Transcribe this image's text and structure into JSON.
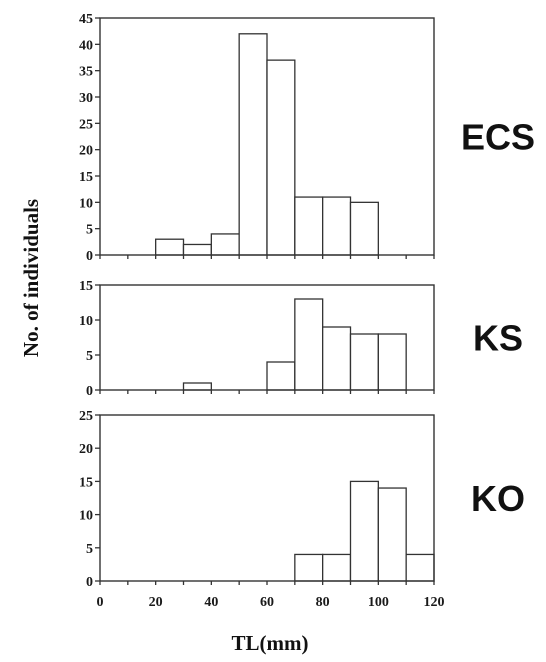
{
  "chart_data": {
    "type": "bar",
    "xlabel": "TL(mm)",
    "ylabel": "No. of individuals",
    "x_ticks": [
      0,
      20,
      40,
      60,
      80,
      100,
      120
    ],
    "bin_width": 10,
    "xlim": [
      0,
      120
    ],
    "panels": [
      {
        "label": "ECS",
        "ylim": [
          0,
          45
        ],
        "y_ticks": [
          0,
          5,
          10,
          15,
          20,
          25,
          30,
          35,
          40,
          45
        ],
        "bins": [
          20,
          30,
          40,
          50,
          60,
          70,
          80,
          90
        ],
        "values": [
          3,
          2,
          4,
          42,
          37,
          11,
          11,
          10
        ]
      },
      {
        "label": "KS",
        "ylim": [
          0,
          15
        ],
        "y_ticks": [
          0,
          5,
          10,
          15
        ],
        "bins": [
          30,
          60,
          70,
          80,
          90,
          100
        ],
        "values": [
          1,
          4,
          13,
          9,
          8,
          8
        ]
      },
      {
        "label": "KO",
        "ylim": [
          0,
          25
        ],
        "y_ticks": [
          0,
          5,
          10,
          15,
          20,
          25
        ],
        "bins": [
          70,
          80,
          90,
          100,
          110
        ],
        "values": [
          4,
          4,
          15,
          14,
          4
        ]
      }
    ]
  }
}
